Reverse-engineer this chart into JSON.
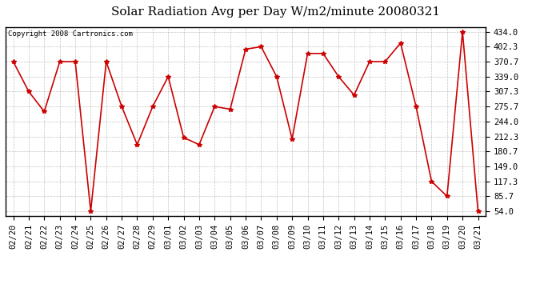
{
  "title": "Solar Radiation Avg per Day W/m2/minute 20080321",
  "copyright": "Copyright 2008 Cartronics.com",
  "dates": [
    "02/20",
    "02/21",
    "02/22",
    "02/23",
    "02/24",
    "02/25",
    "02/26",
    "02/27",
    "02/28",
    "02/29",
    "03/01",
    "03/02",
    "03/03",
    "03/04",
    "03/05",
    "03/06",
    "03/07",
    "03/08",
    "03/09",
    "03/10",
    "03/11",
    "03/12",
    "03/13",
    "03/14",
    "03/15",
    "03/16",
    "03/17",
    "03/18",
    "03/19",
    "03/20",
    "03/21"
  ],
  "values": [
    370.7,
    307.3,
    265.0,
    370.7,
    370.7,
    54.0,
    370.7,
    275.7,
    195.0,
    275.7,
    339.0,
    210.0,
    195.0,
    275.7,
    270.0,
    397.0,
    402.3,
    339.0,
    207.0,
    388.0,
    388.0,
    339.0,
    300.0,
    370.7,
    370.7,
    410.0,
    275.7,
    117.3,
    85.7,
    434.0,
    54.0
  ],
  "line_color": "#cc0000",
  "marker_color": "#cc0000",
  "bg_color": "#ffffff",
  "plot_bg_color": "#ffffff",
  "grid_color": "#aaaaaa",
  "y_ticks": [
    54.0,
    85.7,
    117.3,
    149.0,
    180.7,
    212.3,
    244.0,
    275.7,
    307.3,
    339.0,
    370.7,
    402.3,
    434.0
  ],
  "ylim": [
    54.0,
    434.0
  ],
  "title_fontsize": 11,
  "copyright_fontsize": 6.5,
  "tick_fontsize": 7.5
}
